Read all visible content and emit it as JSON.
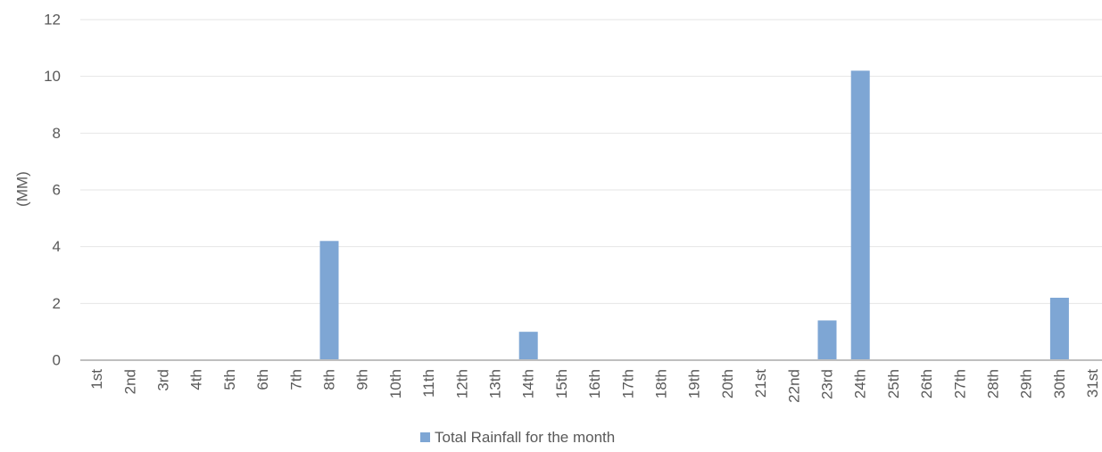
{
  "chart_data": {
    "type": "bar",
    "title": "",
    "xlabel": "",
    "ylabel": "(MM)",
    "ylim": [
      0,
      12
    ],
    "yticks": [
      0,
      2,
      4,
      6,
      8,
      10,
      12
    ],
    "grid": true,
    "legend_position": "bottom",
    "bar_color": "#7ea6d4",
    "categories": [
      "1st",
      "2nd",
      "3rd",
      "4th",
      "5th",
      "6th",
      "7th",
      "8th",
      "9th",
      "10th",
      "11th",
      "12th",
      "13th",
      "14th",
      "15th",
      "16th",
      "17th",
      "18th",
      "19th",
      "20th",
      "21st",
      "22nd",
      "23rd",
      "24th",
      "25th",
      "26th",
      "27th",
      "28th",
      "29th",
      "30th",
      "31st"
    ],
    "series": [
      {
        "name": "Total Rainfall for the month",
        "values": [
          0,
          0,
          0,
          0,
          0,
          0,
          0,
          4.2,
          0,
          0,
          0,
          0,
          0,
          1.0,
          0,
          0,
          0,
          0,
          0,
          0,
          0,
          0,
          1.4,
          10.2,
          0,
          0,
          0,
          0,
          0,
          2.2,
          0
        ]
      }
    ]
  }
}
